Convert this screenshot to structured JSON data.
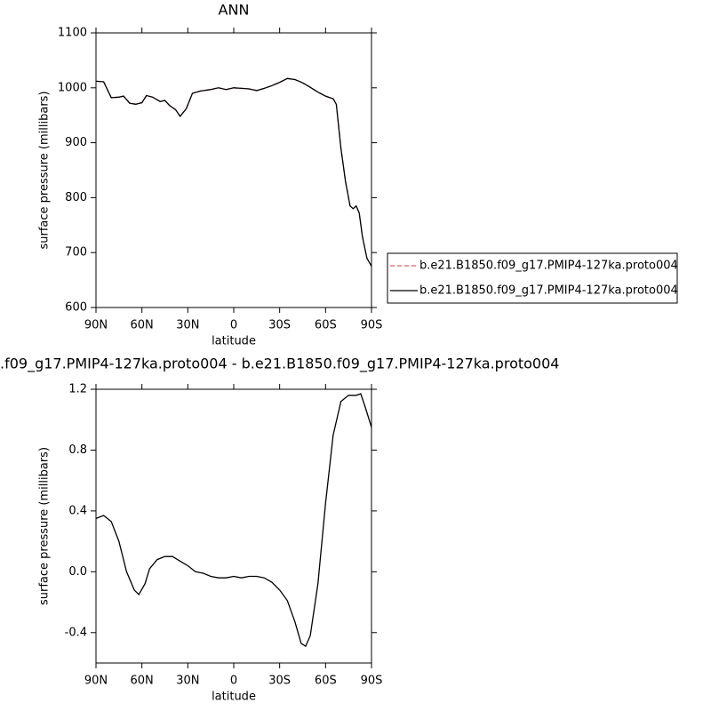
{
  "chart_data": [
    {
      "type": "line",
      "title": "ANN",
      "x_label": "latitude",
      "y_label": "surface pressure (millibars)",
      "xlim": [
        90,
        -90
      ],
      "ylim": [
        600,
        1100
      ],
      "xticks": [
        {
          "value": 90,
          "label": "90N"
        },
        {
          "value": 60,
          "label": "60N"
        },
        {
          "value": 30,
          "label": "30N"
        },
        {
          "value": 0,
          "label": "0"
        },
        {
          "value": -30,
          "label": "30S"
        },
        {
          "value": -60,
          "label": "60S"
        },
        {
          "value": -90,
          "label": "90S"
        }
      ],
      "yticks": [
        600,
        700,
        800,
        900,
        1000,
        1100
      ],
      "x": [
        90,
        85,
        80,
        75,
        72,
        68,
        64,
        60,
        57,
        53,
        48,
        45,
        42,
        38,
        35,
        31,
        27,
        22,
        15,
        10,
        5,
        0,
        -5,
        -10,
        -15,
        -20,
        -25,
        -30,
        -35,
        -40,
        -45,
        -50,
        -55,
        -60,
        -65,
        -67,
        -70,
        -73,
        -76,
        -78,
        -80,
        -82,
        -84,
        -87,
        -90
      ],
      "legend": "right",
      "series": [
        {
          "name": "b.e21.B1850.f09_g17.PMIP4-127ka.proto004",
          "color": "#e06060",
          "dash": true,
          "values": [
            1012,
            1011,
            982,
            983,
            985,
            972,
            970,
            973,
            986,
            983,
            975,
            977,
            968,
            960,
            948,
            962,
            990,
            994,
            997,
            1000,
            997,
            1000,
            999,
            998,
            995,
            999,
            1004,
            1010,
            1017,
            1015,
            1009,
            1001,
            992,
            985,
            980,
            970,
            890,
            830,
            785,
            780,
            785,
            772,
            730,
            690,
            675
          ]
        },
        {
          "name": "b.e21.B1850.f09_g17.PMIP4-127ka.proto004",
          "color": "#000000",
          "dash": false,
          "values": [
            1012,
            1011,
            982,
            983,
            985,
            972,
            970,
            973,
            986,
            983,
            975,
            977,
            968,
            960,
            948,
            962,
            990,
            994,
            997,
            1000,
            997,
            1000,
            999,
            998,
            995,
            999,
            1004,
            1010,
            1017,
            1015,
            1009,
            1001,
            992,
            985,
            980,
            970,
            890,
            830,
            785,
            780,
            785,
            772,
            730,
            690,
            675
          ]
        }
      ]
    },
    {
      "type": "line",
      "title": ".f09_g17.PMIP4-127ka.proto004 - b.e21.B1850.f09_g17.PMIP4-127ka.proto004",
      "x_label": "latitude",
      "y_label": "surface pressure (millibars)",
      "xlim": [
        90,
        -90
      ],
      "ylim": [
        -0.6,
        1.2
      ],
      "xticks": [
        {
          "value": 90,
          "label": "90N"
        },
        {
          "value": 60,
          "label": "60N"
        },
        {
          "value": 30,
          "label": "30N"
        },
        {
          "value": 0,
          "label": "0"
        },
        {
          "value": -30,
          "label": "30S"
        },
        {
          "value": -60,
          "label": "60S"
        },
        {
          "value": -90,
          "label": "90S"
        }
      ],
      "yticks": [
        -0.4,
        {
          "value": 0,
          "label": "0.0"
        },
        0.4,
        0.8,
        1.2
      ],
      "x": [
        90,
        85,
        80,
        75,
        70,
        65,
        62,
        58,
        55,
        50,
        45,
        40,
        35,
        30,
        25,
        20,
        15,
        10,
        5,
        0,
        -5,
        -10,
        -15,
        -20,
        -25,
        -30,
        -35,
        -40,
        -44,
        -47,
        -50,
        -55,
        -60,
        -65,
        -70,
        -75,
        -80,
        -83,
        -86,
        -90
      ],
      "series": [
        {
          "color": "#000000",
          "dash": false,
          "values": [
            0.35,
            0.37,
            0.33,
            0.2,
            0.0,
            -0.12,
            -0.15,
            -0.08,
            0.02,
            0.08,
            0.1,
            0.1,
            0.07,
            0.04,
            0.0,
            -0.01,
            -0.03,
            -0.04,
            -0.04,
            -0.03,
            -0.04,
            -0.03,
            -0.03,
            -0.04,
            -0.07,
            -0.12,
            -0.19,
            -0.33,
            -0.47,
            -0.49,
            -0.42,
            -0.08,
            0.45,
            0.9,
            1.12,
            1.16,
            1.16,
            1.17,
            1.08,
            0.95
          ]
        }
      ]
    }
  ]
}
